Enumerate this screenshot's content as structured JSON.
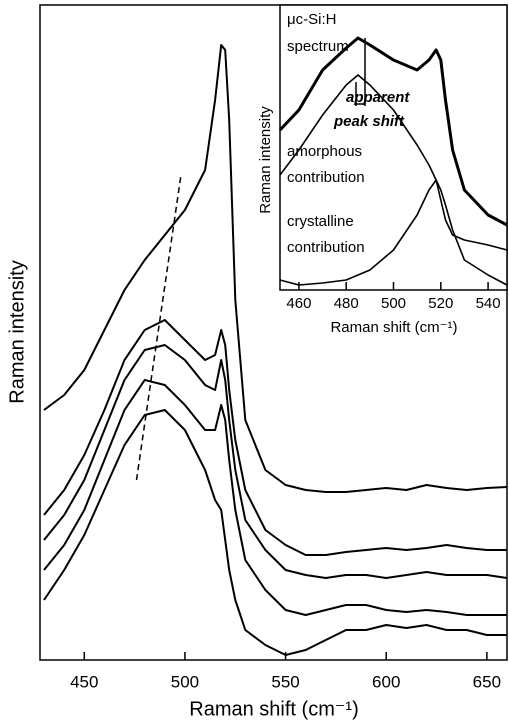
{
  "chart_data": [
    {
      "type": "line",
      "xlabel": "Raman shift (cm⁻¹)",
      "ylabel": "Raman intensity",
      "x": [
        430,
        440,
        450,
        460,
        470,
        480,
        490,
        500,
        510,
        515,
        518,
        520,
        522,
        525,
        530,
        540,
        550,
        560,
        570,
        580,
        590,
        600,
        610,
        620,
        630,
        640,
        650,
        660
      ],
      "series": [
        {
          "color": "#000",
          "values": [
            25,
            26.5,
            29,
            33,
            37,
            40,
            42.5,
            45,
            49,
            56,
            61.5,
            61,
            54,
            36,
            24,
            19,
            17.5,
            17,
            16.8,
            16.8,
            17,
            17.2,
            17,
            17.5,
            17.2,
            17,
            17.2,
            17.3
          ]
        },
        {
          "color": "#000",
          "values": [
            14.5,
            17,
            20.5,
            25,
            30,
            33,
            34,
            32,
            30,
            30.5,
            33,
            31.5,
            27,
            22,
            17,
            13,
            11.5,
            10.5,
            10.5,
            10.8,
            11,
            11.2,
            11,
            11.2,
            11.5,
            11.2,
            11,
            11
          ]
        },
        {
          "color": "#000",
          "values": [
            12,
            14.5,
            18,
            23,
            28,
            31,
            31.5,
            30,
            27.5,
            27,
            30,
            28,
            24,
            19,
            14,
            11,
            9,
            8.5,
            8.2,
            8.5,
            8.5,
            8.2,
            8.5,
            8.8,
            8.5,
            8.5,
            8.5,
            8.2
          ]
        },
        {
          "color": "#000",
          "values": [
            9,
            11.5,
            15,
            20,
            25,
            28,
            27.5,
            25.5,
            23,
            23,
            25.5,
            24,
            20,
            15,
            10,
            7,
            5,
            4.5,
            5,
            5.5,
            5.5,
            5,
            4.8,
            5,
            4.8,
            4.5,
            4.5,
            4.5
          ]
        },
        {
          "color": "#000",
          "values": [
            6,
            9,
            12.5,
            17,
            21.5,
            24.5,
            25,
            23,
            19,
            16,
            15,
            12,
            9,
            6,
            3,
            1.5,
            0.5,
            1,
            2,
            3,
            3,
            3.5,
            3.2,
            3.5,
            3,
            3,
            2.5,
            2.5
          ]
        }
      ],
      "xlim": [
        428,
        660
      ],
      "ylim": [
        0,
        65.5
      ],
      "xticks": [
        450,
        500,
        550,
        600,
        650
      ]
    },
    {
      "type": "line",
      "xlabel": "Raman shift (cm⁻¹)",
      "ylabel": "Raman intensity",
      "x": [
        452,
        460,
        470,
        480,
        485,
        490,
        500,
        510,
        515,
        518,
        520,
        522,
        525,
        530,
        540,
        548
      ],
      "series": [
        {
          "color": "#000",
          "values": [
            16,
            18,
            22,
            24.2,
            25.2,
            24.5,
            23,
            22,
            23,
            24,
            23,
            19,
            14,
            10,
            7.5,
            6.5
          ]
        },
        {
          "color": "#000",
          "values": [
            11.5,
            14,
            17.5,
            20.5,
            21.5,
            20.5,
            18,
            14.5,
            12.5,
            11,
            9,
            7,
            5.5,
            5,
            4.5,
            4
          ]
        },
        {
          "color": "#000",
          "values": [
            1,
            0.5,
            0.7,
            1,
            1.5,
            2,
            4,
            7.5,
            10,
            11,
            10,
            8.5,
            6,
            3,
            1.5,
            0.5
          ]
        }
      ],
      "xlim": [
        452,
        548
      ],
      "ylim": [
        0,
        28.5
      ],
      "xticks": [
        460,
        480,
        500,
        520,
        540
      ],
      "annotations": [
        "μc-Si:H",
        "spectrum",
        "apparent",
        "peak shift",
        "amorphous",
        "contribution",
        "crystalline",
        "contribution"
      ]
    }
  ]
}
